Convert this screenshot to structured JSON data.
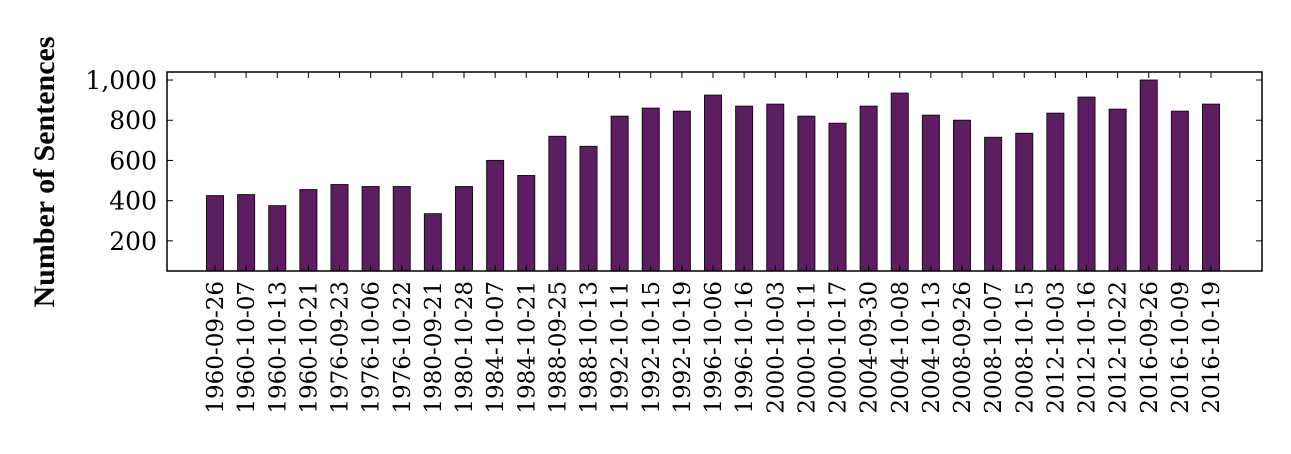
{
  "chart_data": {
    "type": "bar",
    "title": "",
    "xlabel": "",
    "ylabel": "Number of Sentences",
    "ylim": [
      50,
      1040
    ],
    "yticks": [
      200,
      400,
      600,
      800,
      1000
    ],
    "ytick_labels": [
      "200",
      "400",
      "600",
      "800",
      "1,000"
    ],
    "grid": false,
    "legend": "none",
    "bar_color": "#5c1e60",
    "categories": [
      "1960-09-26",
      "1960-10-07",
      "1960-10-13",
      "1960-10-21",
      "1976-09-23",
      "1976-10-06",
      "1976-10-22",
      "1980-09-21",
      "1980-10-28",
      "1984-10-07",
      "1984-10-21",
      "1988-09-25",
      "1988-10-13",
      "1992-10-11",
      "1992-10-15",
      "1992-10-19",
      "1996-10-06",
      "1996-10-16",
      "2000-10-03",
      "2000-10-11",
      "2000-10-17",
      "2004-09-30",
      "2004-10-08",
      "2004-10-13",
      "2008-09-26",
      "2008-10-07",
      "2008-10-15",
      "2012-10-03",
      "2012-10-16",
      "2012-10-22",
      "2016-09-26",
      "2016-10-09",
      "2016-10-19"
    ],
    "values": [
      425,
      430,
      375,
      455,
      480,
      470,
      470,
      335,
      470,
      600,
      525,
      720,
      670,
      820,
      860,
      845,
      925,
      870,
      880,
      820,
      785,
      870,
      935,
      825,
      800,
      715,
      735,
      835,
      915,
      855,
      1000,
      845,
      880
    ]
  }
}
